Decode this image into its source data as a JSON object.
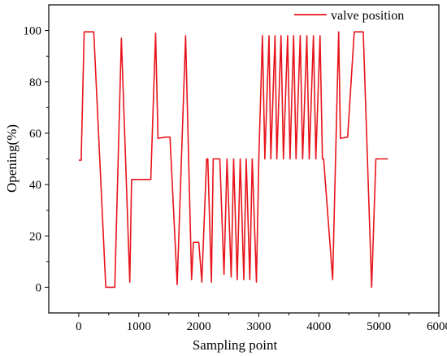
{
  "chart_data": {
    "type": "line",
    "title": "",
    "xlabel": "Sampling point",
    "ylabel": "Opening(%)",
    "xlim": [
      -500,
      6000
    ],
    "ylim": [
      -10,
      110
    ],
    "xticks": [
      0,
      1000,
      2000,
      3000,
      4000,
      5000,
      6000
    ],
    "yticks": [
      0,
      20,
      40,
      60,
      80,
      100
    ],
    "grid": false,
    "legend": "top-right",
    "series": [
      {
        "name": "valve position",
        "color": "#e8141b",
        "points": [
          [
            0,
            49.5
          ],
          [
            40,
            49.5
          ],
          [
            90,
            99.5
          ],
          [
            250,
            99.5
          ],
          [
            450,
            0
          ],
          [
            600,
            0
          ],
          [
            710,
            97
          ],
          [
            850,
            2
          ],
          [
            880,
            42
          ],
          [
            1200,
            42
          ],
          [
            1280,
            99
          ],
          [
            1320,
            58
          ],
          [
            1450,
            58.5
          ],
          [
            1520,
            58.5
          ],
          [
            1640,
            1
          ],
          [
            1780,
            98
          ],
          [
            1880,
            3
          ],
          [
            1910,
            17.5
          ],
          [
            2000,
            17.5
          ],
          [
            2050,
            2
          ],
          [
            2130,
            50
          ],
          [
            2150,
            50
          ],
          [
            2210,
            2
          ],
          [
            2240,
            50
          ],
          [
            2350,
            50
          ],
          [
            2420,
            5
          ],
          [
            2470,
            50
          ],
          [
            2540,
            4
          ],
          [
            2580,
            50
          ],
          [
            2640,
            3
          ],
          [
            2690,
            50
          ],
          [
            2750,
            3
          ],
          [
            2790,
            50
          ],
          [
            2850,
            3
          ],
          [
            2890,
            50
          ],
          [
            2960,
            2
          ],
          [
            3000,
            50
          ],
          [
            3060,
            98
          ],
          [
            3100,
            50
          ],
          [
            3170,
            98
          ],
          [
            3200,
            50
          ],
          [
            3270,
            98
          ],
          [
            3300,
            50
          ],
          [
            3370,
            98
          ],
          [
            3410,
            50
          ],
          [
            3480,
            98
          ],
          [
            3520,
            50
          ],
          [
            3580,
            98
          ],
          [
            3620,
            50
          ],
          [
            3690,
            98
          ],
          [
            3730,
            50
          ],
          [
            3800,
            98
          ],
          [
            3840,
            50
          ],
          [
            3910,
            98
          ],
          [
            3950,
            50
          ],
          [
            4020,
            98
          ],
          [
            4060,
            50
          ],
          [
            4080,
            50
          ],
          [
            4230,
            3
          ],
          [
            4330,
            99.5
          ],
          [
            4360,
            58
          ],
          [
            4480,
            58.5
          ],
          [
            4590,
            99.5
          ],
          [
            4740,
            99.5
          ],
          [
            4880,
            0
          ],
          [
            4950,
            50
          ],
          [
            5150,
            50
          ]
        ]
      }
    ]
  }
}
